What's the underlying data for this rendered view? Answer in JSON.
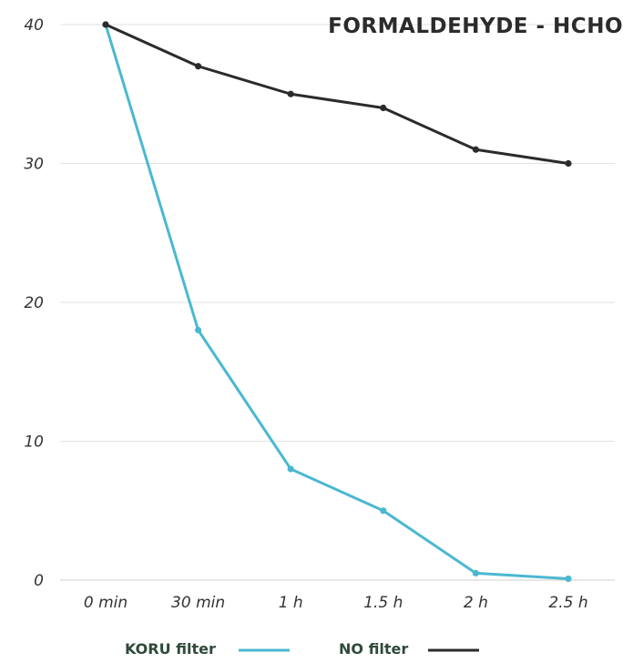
{
  "chart_data": {
    "type": "line",
    "title": "FORMALDEHYDE - HCHO",
    "xlabel": "",
    "ylabel": "",
    "categories": [
      "0 min",
      "30 min",
      "1 h",
      "1.5 h",
      "2 h",
      "2.5 h"
    ],
    "ylim": [
      0,
      40
    ],
    "yticks": [
      0,
      10,
      20,
      30,
      40
    ],
    "grid": true,
    "legend_position": "bottom",
    "series": [
      {
        "name": "KORU filter",
        "color": "#4bb8d1",
        "values": [
          40,
          18,
          8,
          5,
          0.5,
          0.1
        ]
      },
      {
        "name": "NO filter",
        "color": "#2b2b2b",
        "values": [
          40,
          37,
          35,
          34,
          31,
          30
        ]
      }
    ]
  }
}
